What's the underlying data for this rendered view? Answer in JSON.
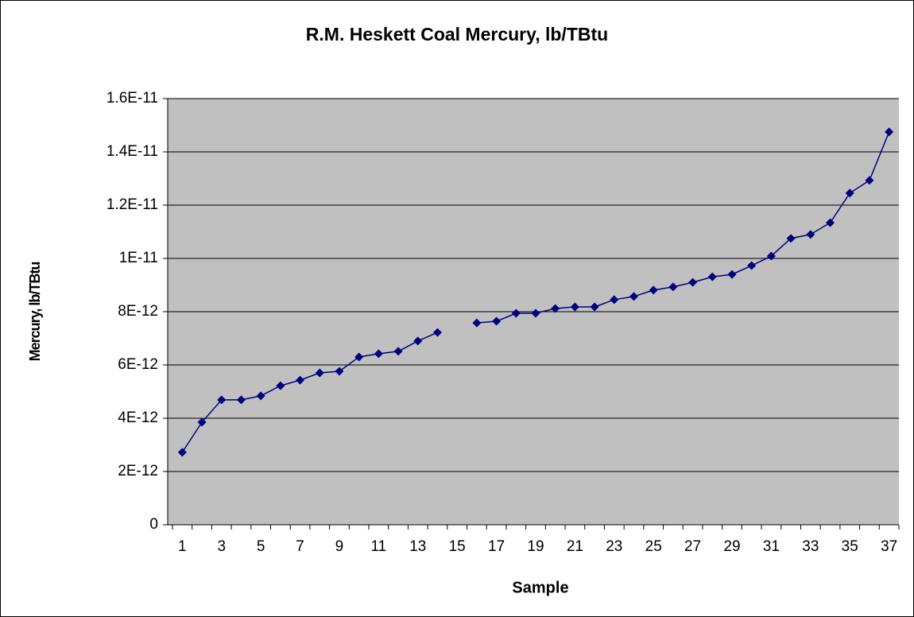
{
  "chart_data": {
    "type": "line",
    "title": "R.M. Heskett Coal Mercury, lb/TBtu",
    "x_label": "Sample",
    "y_label": "Mercury, lb/TBtu",
    "categories": [
      "1",
      null,
      "3",
      null,
      "5",
      null,
      "7",
      null,
      "9",
      null,
      "11",
      null,
      "13",
      null,
      "15",
      null,
      "17",
      null,
      "19",
      null,
      "21",
      null,
      "23",
      null,
      "25",
      null,
      "27",
      null,
      "29",
      null,
      "31",
      null,
      "33",
      null,
      "35",
      null,
      "37"
    ],
    "series": [
      {
        "name": "Mercury, lb/TBtu",
        "color": "#000080",
        "values": [
          2.72e-12,
          3.85e-12,
          4.69e-12,
          4.69e-12,
          4.84e-12,
          5.22e-12,
          5.43e-12,
          5.7e-12,
          5.76e-12,
          6.3e-12,
          6.42e-12,
          6.51e-12,
          6.9e-12,
          7.22e-12,
          null,
          7.58e-12,
          7.64e-12,
          7.94e-12,
          7.94e-12,
          8.12e-12,
          8.18e-12,
          8.18e-12,
          8.45e-12,
          8.57e-12,
          8.81e-12,
          8.93e-12,
          9.1e-12,
          9.31e-12,
          9.4e-12,
          9.73e-12,
          1.009e-11,
          1.075e-11,
          1.09e-11,
          1.134e-11,
          1.245e-11,
          1.293e-11,
          1.475e-11
        ]
      }
    ],
    "ylim": [
      0,
      1.6e-11
    ],
    "yticks": [
      0,
      {
        "value": 2e-12,
        "label": "2E-12"
      },
      {
        "value": 4e-12,
        "label": "4E-12"
      },
      {
        "value": 6e-12,
        "label": "6E-12"
      },
      {
        "value": 8e-12,
        "label": "8E-12"
      },
      {
        "value": 1e-11,
        "label": "1E-11"
      },
      {
        "value": 1.2e-11,
        "label": "1.2E-11"
      },
      {
        "value": 1.4e-11,
        "label": "1.4E-11"
      },
      {
        "value": 1.6e-11,
        "label": "1.6E-11"
      }
    ],
    "grid": true,
    "plot_background": "#c0c0c0"
  }
}
